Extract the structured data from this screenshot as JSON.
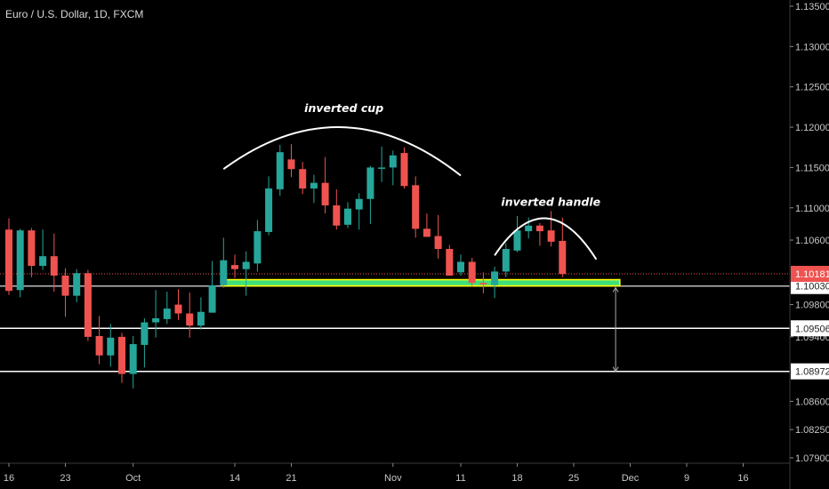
{
  "header": {
    "title": "Euro / U.S. Dollar, 1D, FXCM"
  },
  "colors": {
    "up": "#26a69a",
    "down": "#ef5350",
    "background": "#000000",
    "axis_text": "#c8c8c8",
    "zone_border": "#ffff00",
    "zone_fill": "#3fe07a"
  },
  "chart_data": {
    "type": "candlestick",
    "title": "Euro / U.S. Dollar, 1D, FXCM",
    "ylim": [
      1.0785,
      1.1365
    ],
    "y_ticks": [
      "1.13500",
      "1.13000",
      "1.12500",
      "1.12000",
      "1.11500",
      "1.11000",
      "1.10600",
      "1.09800",
      "1.09400",
      "1.08600",
      "1.08250",
      "1.07900"
    ],
    "x_ticks": [
      {
        "label": "16",
        "index": 0
      },
      {
        "label": "23",
        "index": 5
      },
      {
        "label": "Oct",
        "index": 11
      },
      {
        "label": "14",
        "index": 20
      },
      {
        "label": "21",
        "index": 25
      },
      {
        "label": "Nov",
        "index": 34
      },
      {
        "label": "11",
        "index": 40
      },
      {
        "label": "18",
        "index": 45
      },
      {
        "label": "25",
        "index": 50
      },
      {
        "label": "Dec",
        "index": 55
      },
      {
        "label": "9",
        "index": 60
      },
      {
        "label": "16",
        "index": 65
      }
    ],
    "candles": [
      [
        1.1073,
        1.1087,
        1.0992,
        1.0997
      ],
      [
        1.0998,
        1.1074,
        1.0989,
        1.1072
      ],
      [
        1.1072,
        1.1075,
        1.1014,
        1.1028
      ],
      [
        1.1028,
        1.1073,
        1.1023,
        1.104
      ],
      [
        1.104,
        1.1068,
        1.0996,
        1.1016
      ],
      [
        1.1016,
        1.1025,
        1.0965,
        1.0991
      ],
      [
        1.0991,
        1.1024,
        1.0983,
        1.1019
      ],
      [
        1.1019,
        1.1023,
        1.0935,
        1.094
      ],
      [
        1.0941,
        1.0966,
        1.0906,
        1.0917
      ],
      [
        1.0917,
        1.0956,
        1.0903,
        1.0939
      ],
      [
        1.094,
        1.0945,
        1.0883,
        1.0894
      ],
      [
        1.0894,
        1.0941,
        1.0876,
        1.0931
      ],
      [
        1.093,
        1.0963,
        1.0902,
        1.0958
      ],
      [
        1.0958,
        1.0998,
        1.0939,
        1.0963
      ],
      [
        1.0962,
        1.0996,
        1.0956,
        1.0975
      ],
      [
        1.098,
        1.0999,
        1.0961,
        1.0969
      ],
      [
        1.0969,
        1.0995,
        1.0939,
        1.0954
      ],
      [
        1.0954,
        1.0989,
        1.0949,
        1.0971
      ],
      [
        1.097,
        1.1034,
        1.097,
        1.1004
      ],
      [
        1.1004,
        1.1063,
        1.1001,
        1.1035
      ],
      [
        1.1029,
        1.1042,
        1.1013,
        1.1024
      ],
      [
        1.1024,
        1.1046,
        1.0991,
        1.1033
      ],
      [
        1.1031,
        1.1085,
        1.1021,
        1.1071
      ],
      [
        1.107,
        1.1139,
        1.1066,
        1.1124
      ],
      [
        1.1123,
        1.1178,
        1.1115,
        1.1169
      ],
      [
        1.116,
        1.1179,
        1.1138,
        1.1148
      ],
      [
        1.1148,
        1.1157,
        1.1117,
        1.1124
      ],
      [
        1.1124,
        1.1141,
        1.1106,
        1.1131
      ],
      [
        1.1131,
        1.1163,
        1.1093,
        1.1103
      ],
      [
        1.1103,
        1.1123,
        1.1073,
        1.1078
      ],
      [
        1.1079,
        1.1107,
        1.1075,
        1.1099
      ],
      [
        1.1098,
        1.1118,
        1.1073,
        1.1111
      ],
      [
        1.1111,
        1.1152,
        1.108,
        1.115
      ],
      [
        1.1149,
        1.1176,
        1.1132,
        1.115
      ],
      [
        1.115,
        1.1171,
        1.1128,
        1.1165
      ],
      [
        1.1168,
        1.1175,
        1.1124,
        1.1127
      ],
      [
        1.1128,
        1.1139,
        1.1063,
        1.1074
      ],
      [
        1.1074,
        1.1093,
        1.1064,
        1.1064
      ],
      [
        1.1065,
        1.1091,
        1.1037,
        1.1049
      ],
      [
        1.1049,
        1.1054,
        1.1016,
        1.1016
      ],
      [
        1.102,
        1.1042,
        1.1016,
        1.1033
      ],
      [
        1.1033,
        1.1038,
        1.1003,
        1.1007
      ],
      [
        1.1007,
        1.102,
        1.0994,
        1.1005
      ],
      [
        1.1004,
        1.1027,
        1.0988,
        1.1021
      ],
      [
        1.1021,
        1.1056,
        1.1014,
        1.1049
      ],
      [
        1.1047,
        1.109,
        1.1045,
        1.1072
      ],
      [
        1.1071,
        1.1088,
        1.1062,
        1.1078
      ],
      [
        1.1078,
        1.1081,
        1.1053,
        1.1071
      ],
      [
        1.1072,
        1.1096,
        1.1052,
        1.1058
      ],
      [
        1.1059,
        1.1088,
        1.1014,
        1.1018
      ]
    ],
    "candle_format": [
      "open",
      "high",
      "low",
      "close"
    ],
    "last_price": {
      "value": "1.10181",
      "price": 1.10181
    },
    "horizontal_lines": [
      {
        "label": "1.10030",
        "price": 1.1003
      },
      {
        "label": "1.09506",
        "price": 1.09506
      },
      {
        "label": "1.08972",
        "price": 1.08972
      }
    ],
    "support_zone": {
      "price_top": 1.1012,
      "price_bottom": 1.1003,
      "from_index": 19,
      "to_index": 54
    },
    "annotations": [
      {
        "text": "inverted cup",
        "type": "arc",
        "from_index": 19,
        "to_index": 40,
        "peak_price": 1.12
      },
      {
        "text": "inverted handle",
        "type": "arc",
        "from_index": 43,
        "to_index": 52,
        "peak_price": 1.1087
      }
    ],
    "measure_arrow": {
      "index": 53,
      "from_price": 1.1001,
      "to_price": 1.08972
    }
  }
}
